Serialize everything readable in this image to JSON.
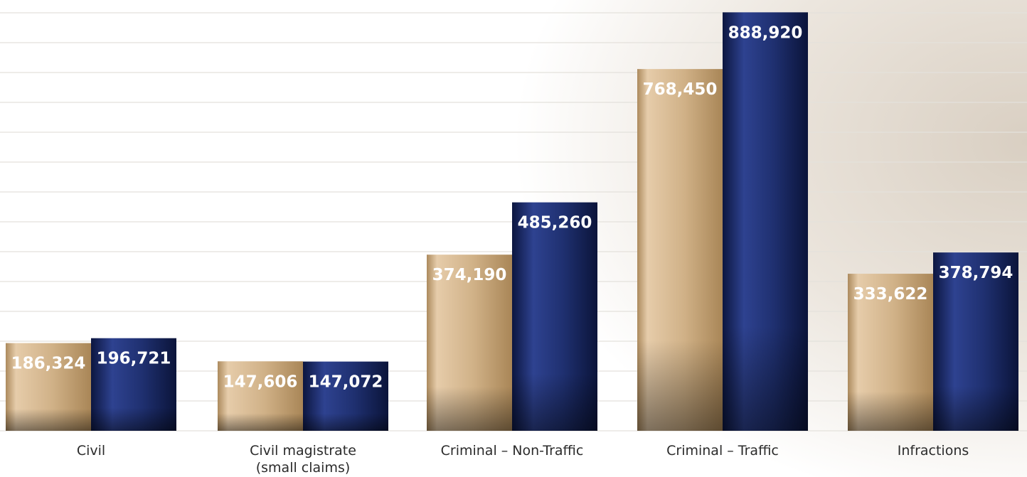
{
  "chart_data": {
    "type": "bar",
    "categories": [
      [
        "Civil"
      ],
      [
        "Civil magistrate",
        "(small claims)"
      ],
      [
        "Criminal – Non-Traffic"
      ],
      [
        "Criminal – Traffic"
      ],
      [
        "Infractions"
      ]
    ],
    "series": [
      {
        "values": [
          186324,
          147606,
          374190,
          768450,
          333622
        ],
        "labels": [
          "186,324",
          "147,606",
          "374,190",
          "768,450",
          "333,622"
        ],
        "color": "#c9a97a"
      },
      {
        "values": [
          196721,
          147072,
          485260,
          888920,
          378794
        ],
        "labels": [
          "196,721",
          "147,072",
          "485,260",
          "888,920",
          "378,794"
        ],
        "color": "#1f2f6b"
      }
    ],
    "ylim": [
      0,
      900000
    ],
    "grid": true,
    "legend": "none"
  }
}
